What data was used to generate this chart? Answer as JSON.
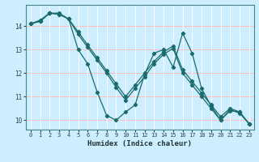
{
  "title": "",
  "xlabel": "Humidex (Indice chaleur)",
  "bg_color": "#cceeff",
  "line_color": "#1a6b6b",
  "xlim": [
    -0.5,
    23.5
  ],
  "ylim": [
    9.6,
    14.9
  ],
  "xticks": [
    0,
    1,
    2,
    3,
    4,
    5,
    6,
    7,
    8,
    9,
    10,
    11,
    12,
    13,
    14,
    15,
    16,
    17,
    18,
    19,
    20,
    21,
    22,
    23
  ],
  "yticks": [
    10,
    11,
    12,
    13,
    14
  ],
  "line1_x": [
    0,
    1,
    2,
    3,
    4,
    5,
    6,
    7,
    8,
    9,
    10,
    11,
    12,
    13,
    14,
    15,
    16,
    17,
    18,
    19,
    20,
    21,
    22,
    23
  ],
  "line1_y": [
    14.1,
    14.25,
    14.55,
    14.55,
    14.3,
    13.0,
    12.4,
    11.2,
    10.2,
    10.0,
    10.35,
    10.65,
    11.95,
    12.85,
    13.0,
    12.25,
    13.7,
    12.85,
    11.35,
    10.6,
    10.0,
    10.4,
    10.35,
    9.85
  ],
  "line2_x": [
    0,
    1,
    2,
    3,
    4,
    5,
    6,
    7,
    8,
    9,
    10,
    11,
    12,
    13,
    14,
    15,
    16,
    17,
    18,
    19,
    20,
    21,
    22,
    23
  ],
  "line2_y": [
    14.1,
    14.2,
    14.55,
    14.5,
    14.3,
    13.75,
    13.2,
    12.65,
    12.1,
    11.55,
    11.0,
    11.5,
    12.0,
    12.5,
    12.9,
    13.15,
    12.15,
    11.65,
    11.15,
    10.65,
    10.15,
    10.5,
    10.35,
    9.85
  ],
  "line3_x": [
    0,
    1,
    2,
    3,
    4,
    5,
    6,
    7,
    8,
    9,
    10,
    11,
    12,
    13,
    14,
    15,
    16,
    17,
    18,
    19,
    20,
    21,
    22,
    23
  ],
  "line3_y": [
    14.1,
    14.2,
    14.55,
    14.5,
    14.3,
    13.65,
    13.1,
    12.55,
    12.0,
    11.4,
    10.85,
    11.35,
    11.85,
    12.4,
    12.8,
    13.05,
    12.0,
    11.5,
    11.0,
    10.5,
    10.0,
    10.45,
    10.3,
    9.85
  ]
}
